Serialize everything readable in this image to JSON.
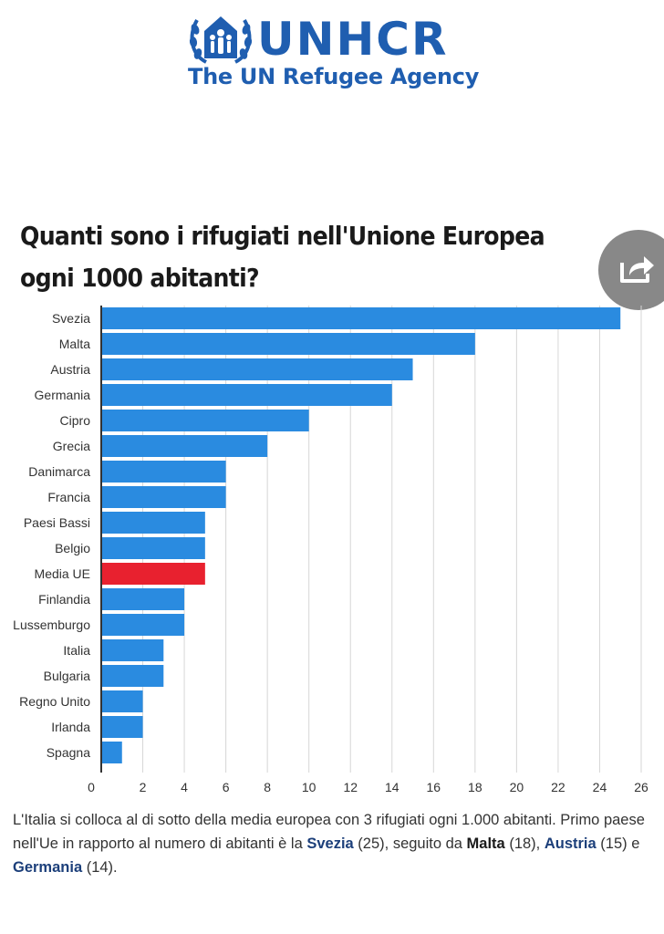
{
  "logo": {
    "wordmark": "UNHCR",
    "subtitle": "The UN Refugee Agency"
  },
  "title": "Quanti sono i rifugiati nell'Unione Europea ogni 1000 abitanti?",
  "share": {
    "icon": "share-icon"
  },
  "colors": {
    "bar": "#2a8be0",
    "highlight": "#e8212f",
    "logo": "#1f5eb0",
    "grid": "#d6d6d6"
  },
  "chart_data": {
    "type": "bar",
    "orientation": "horizontal",
    "categories": [
      "Svezia",
      "Malta",
      "Austria",
      "Germania",
      "Cipro",
      "Grecia",
      "Danimarca",
      "Francia",
      "Paesi Bassi",
      "Belgio",
      "Media UE",
      "Finlandia",
      "Lussemburgo",
      "Italia",
      "Bulgaria",
      "Regno Unito",
      "Irlanda",
      "Spagna"
    ],
    "values": [
      25,
      18,
      15,
      14,
      10,
      8,
      6,
      6,
      5,
      5,
      5,
      4,
      4,
      3,
      3,
      2,
      2,
      1
    ],
    "highlight": "Media UE",
    "xlim": [
      0,
      26
    ],
    "xticks": [
      0,
      2,
      4,
      6,
      8,
      10,
      12,
      14,
      16,
      18,
      20,
      22,
      24,
      26
    ],
    "grid": true,
    "legend": "none"
  },
  "caption": {
    "intro": "L'Italia si colloca al di sotto della media europea con 3 rifugiati ogni 1.000 abitanti. Primo paese nell'Ue in rapporto al numero di abitanti è la ",
    "c1": "Svezia",
    "v1": " (25), seguito da ",
    "c2": "Malta",
    "v2": " (18), ",
    "c3": "Austria",
    "v3": " (15) e ",
    "c4": "Germania",
    "v4": " (14)."
  }
}
